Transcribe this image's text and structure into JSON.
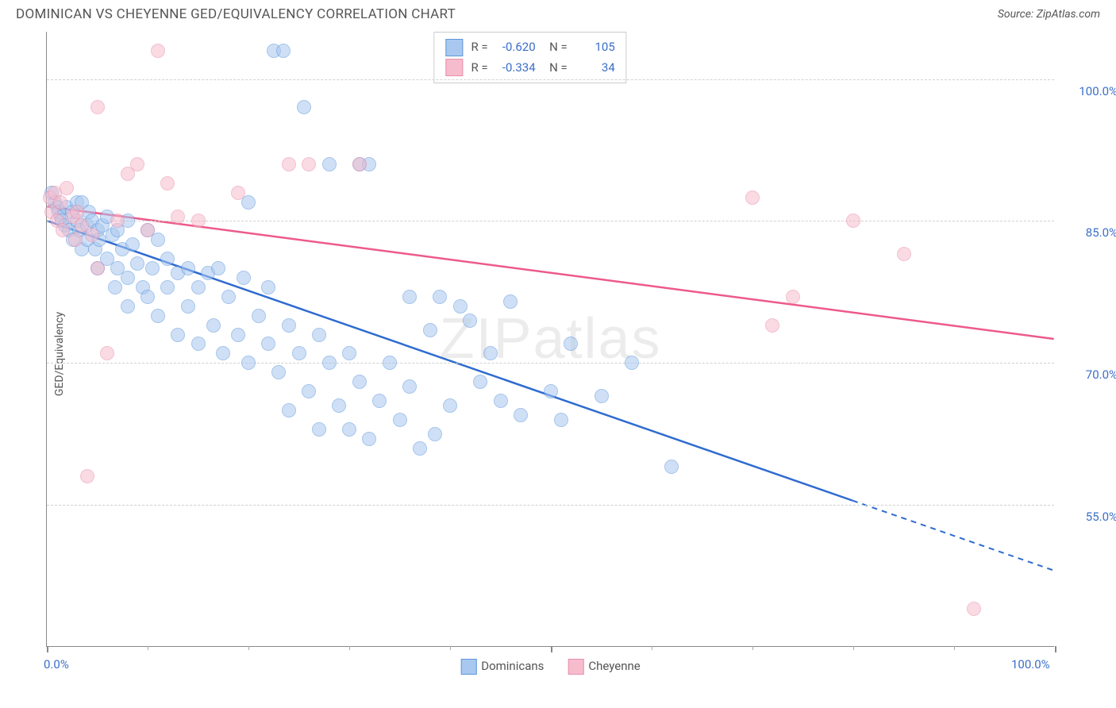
{
  "title": "DOMINICAN VS CHEYENNE GED/EQUIVALENCY CORRELATION CHART",
  "source": "Source: ZipAtlas.com",
  "watermark": "ZIPatlas",
  "ylabel": "GED/Equivalency",
  "chart": {
    "type": "scatter",
    "xlim": [
      0,
      100
    ],
    "ylim": [
      40,
      105
    ],
    "y_gridlines": [
      55,
      70,
      85,
      100
    ],
    "y_tick_labels": [
      "55.0%",
      "70.0%",
      "85.0%",
      "100.0%"
    ],
    "x_major_ticks": [
      0,
      50,
      100
    ],
    "x_tick_labels_shown": {
      "0": "0.0%",
      "100": "100.0%"
    },
    "x_minor_ticks": [
      10,
      20,
      30,
      40,
      60,
      70,
      80,
      90
    ],
    "background_color": "#ffffff",
    "grid_color": "#d0d0d0",
    "axis_color": "#888888",
    "label_color": "#3b6fc9",
    "point_radius": 9,
    "series": [
      {
        "name": "Dominicans",
        "fill": "#a9c8ef",
        "stroke": "#5e96db",
        "fill_opacity": 0.55,
        "R": -0.62,
        "N": 105,
        "trend": {
          "x1": 0,
          "y1": 85,
          "x2": 100,
          "y2": 48,
          "color": "#2e6bd0",
          "width": 2.5,
          "solid_until_x": 80
        },
        "points": [
          [
            0.5,
            88
          ],
          [
            0.8,
            87
          ],
          [
            1,
            86.5
          ],
          [
            1.2,
            86
          ],
          [
            1.4,
            85.5
          ],
          [
            1.5,
            85
          ],
          [
            1.8,
            84.5
          ],
          [
            2,
            86.5
          ],
          [
            2.2,
            84
          ],
          [
            2.5,
            86
          ],
          [
            2.6,
            83
          ],
          [
            3,
            85
          ],
          [
            3,
            87
          ],
          [
            3.2,
            84
          ],
          [
            3.5,
            82
          ],
          [
            3.5,
            87
          ],
          [
            4,
            84.5
          ],
          [
            4,
            83
          ],
          [
            4.2,
            86
          ],
          [
            4.5,
            85
          ],
          [
            4.8,
            82
          ],
          [
            5,
            84
          ],
          [
            5,
            80
          ],
          [
            5.2,
            83
          ],
          [
            5.5,
            84.5
          ],
          [
            6,
            81
          ],
          [
            6,
            85.5
          ],
          [
            6.5,
            83.5
          ],
          [
            6.8,
            78
          ],
          [
            7,
            84
          ],
          [
            7,
            80
          ],
          [
            7.5,
            82
          ],
          [
            8,
            85
          ],
          [
            8,
            79
          ],
          [
            8,
            76
          ],
          [
            8.5,
            82.5
          ],
          [
            9,
            80.5
          ],
          [
            9.5,
            78
          ],
          [
            10,
            84
          ],
          [
            10,
            77
          ],
          [
            10.5,
            80
          ],
          [
            11,
            83
          ],
          [
            11,
            75
          ],
          [
            12,
            81
          ],
          [
            12,
            78
          ],
          [
            13,
            79.5
          ],
          [
            13,
            73
          ],
          [
            14,
            80
          ],
          [
            14,
            76
          ],
          [
            15,
            78
          ],
          [
            15,
            72
          ],
          [
            16,
            79.5
          ],
          [
            16.5,
            74
          ],
          [
            17,
            80
          ],
          [
            17.5,
            71
          ],
          [
            18,
            77
          ],
          [
            19,
            73
          ],
          [
            19.5,
            79
          ],
          [
            20,
            70
          ],
          [
            20,
            87
          ],
          [
            21,
            75
          ],
          [
            22,
            72
          ],
          [
            22,
            78
          ],
          [
            22.5,
            103
          ],
          [
            23,
            69
          ],
          [
            23.5,
            103
          ],
          [
            24,
            74
          ],
          [
            24,
            65
          ],
          [
            25,
            71
          ],
          [
            25.5,
            97
          ],
          [
            26,
            67
          ],
          [
            27,
            73
          ],
          [
            27,
            63
          ],
          [
            28,
            70
          ],
          [
            28,
            91
          ],
          [
            29,
            65.5
          ],
          [
            30,
            71
          ],
          [
            30,
            63
          ],
          [
            31,
            68
          ],
          [
            31,
            91
          ],
          [
            32,
            91
          ],
          [
            32,
            62
          ],
          [
            33,
            66
          ],
          [
            34,
            70
          ],
          [
            35,
            64
          ],
          [
            36,
            67.5
          ],
          [
            36,
            77
          ],
          [
            37,
            61
          ],
          [
            38,
            73.5
          ],
          [
            38.5,
            62.5
          ],
          [
            39,
            77
          ],
          [
            40,
            65.5
          ],
          [
            41,
            76
          ],
          [
            42,
            74.5
          ],
          [
            43,
            68
          ],
          [
            44,
            71
          ],
          [
            45,
            66
          ],
          [
            46,
            76.5
          ],
          [
            47,
            64.5
          ],
          [
            50,
            67
          ],
          [
            51,
            64
          ],
          [
            52,
            72
          ],
          [
            55,
            66.5
          ],
          [
            58,
            70
          ],
          [
            62,
            59
          ]
        ]
      },
      {
        "name": "Cheyenne",
        "fill": "#f6bccd",
        "stroke": "#e98fab",
        "fill_opacity": 0.55,
        "R": -0.334,
        "N": 34,
        "trend": {
          "x1": 0,
          "y1": 86.5,
          "x2": 100,
          "y2": 72.5,
          "color": "#ed5a8a",
          "width": 2.5,
          "solid_until_x": 100
        },
        "points": [
          [
            0.3,
            87.5
          ],
          [
            0.5,
            86
          ],
          [
            0.8,
            88
          ],
          [
            1,
            85
          ],
          [
            1.3,
            87
          ],
          [
            1.6,
            84
          ],
          [
            2,
            88.5
          ],
          [
            2.5,
            85.5
          ],
          [
            2.8,
            83
          ],
          [
            3,
            86
          ],
          [
            3.5,
            84.5
          ],
          [
            4,
            58
          ],
          [
            4.5,
            83.5
          ],
          [
            5,
            97
          ],
          [
            5,
            80
          ],
          [
            6,
            71
          ],
          [
            7,
            85
          ],
          [
            8,
            90
          ],
          [
            9,
            91
          ],
          [
            10,
            84
          ],
          [
            11,
            103
          ],
          [
            12,
            89
          ],
          [
            13,
            85.5
          ],
          [
            15,
            85
          ],
          [
            19,
            88
          ],
          [
            24,
            91
          ],
          [
            26,
            91
          ],
          [
            31,
            91
          ],
          [
            70,
            87.5
          ],
          [
            72,
            74
          ],
          [
            74,
            77
          ],
          [
            80,
            85
          ],
          [
            85,
            81.5
          ],
          [
            92,
            44
          ]
        ]
      }
    ]
  },
  "legend_top": [
    {
      "swatch_fill": "#a9c8ef",
      "swatch_stroke": "#5e96db",
      "R": "-0.620",
      "N": "105"
    },
    {
      "swatch_fill": "#f6bccd",
      "swatch_stroke": "#e98fab",
      "R": "-0.334",
      "N": "34"
    }
  ],
  "legend_bottom": [
    {
      "label": "Dominicans",
      "swatch_fill": "#a9c8ef",
      "swatch_stroke": "#5e96db"
    },
    {
      "label": "Cheyenne",
      "swatch_fill": "#f6bccd",
      "swatch_stroke": "#e98fab"
    }
  ]
}
